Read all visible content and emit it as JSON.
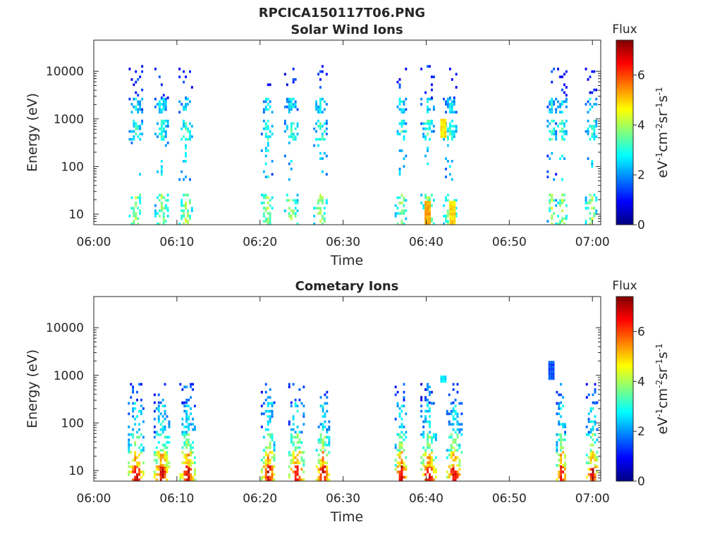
{
  "page_title": "RPCICA150117T06.PNG",
  "chart_data": [
    {
      "type": "heatmap",
      "title": "Solar Wind Ions",
      "xlabel": "Time",
      "ylabel": "Energy (eV)",
      "x_ticks": [
        "06:00",
        "06:10",
        "06:20",
        "06:30",
        "06:40",
        "06:50",
        "07:00"
      ],
      "xlim": [
        "06:00",
        "07:01"
      ],
      "y_scale": "log",
      "y_ticks": [
        "10",
        "100",
        "1000",
        "10000"
      ],
      "ylim": [
        6,
        45000
      ],
      "colorbar": {
        "title": "Flux",
        "label": "eV-1cm-2sr-1s-1",
        "ticks": [
          "0",
          "2",
          "4",
          "6"
        ],
        "range": [
          0,
          7.4
        ],
        "colormap": "jet"
      },
      "bursts": [
        {
          "t": 5.0,
          "spread": 1.6
        },
        {
          "t": 8.1,
          "spread": 1.6
        },
        {
          "t": 11.0,
          "spread": 1.6
        },
        {
          "t": 20.8,
          "spread": 1.4
        },
        {
          "t": 23.7,
          "spread": 1.6
        },
        {
          "t": 27.2,
          "spread": 1.6
        },
        {
          "t": 36.9,
          "spread": 1.4
        },
        {
          "t": 40.1,
          "spread": 1.6
        },
        {
          "t": 42.8,
          "spread": 1.6
        },
        {
          "t": 55.0,
          "spread": 1.0
        },
        {
          "t": 56.2,
          "spread": 1.4
        },
        {
          "t": 59.8,
          "spread": 1.4
        }
      ],
      "bands": [
        {
          "e_lo": 4,
          "e_hi": 25,
          "v": 3.4,
          "density": 0.45
        },
        {
          "e_lo": 350,
          "e_hi": 850,
          "v": 2.7,
          "density": 0.55
        },
        {
          "e_lo": 1300,
          "e_hi": 2600,
          "v": 2.3,
          "density": 0.5
        },
        {
          "e_lo": 50,
          "e_hi": 320,
          "v": 2.2,
          "density": 0.08
        },
        {
          "e_lo": 2600,
          "e_hi": 12000,
          "v": 1.1,
          "density": 0.09
        }
      ],
      "highlights": [
        {
          "t": 40.1,
          "e_lo": 6,
          "e_hi": 18,
          "v": 5.3
        },
        {
          "t": 43.1,
          "e_lo": 6,
          "e_hi": 18,
          "v": 4.9
        },
        {
          "t": 42.0,
          "e_lo": 400,
          "e_hi": 900,
          "v": 4.8
        }
      ]
    },
    {
      "type": "heatmap",
      "title": "Cometary Ions",
      "xlabel": "Time",
      "ylabel": "Energy (eV)",
      "x_ticks": [
        "06:00",
        "06:10",
        "06:20",
        "06:30",
        "06:40",
        "06:50",
        "07:00"
      ],
      "xlim": [
        "06:00",
        "07:01"
      ],
      "y_scale": "log",
      "y_ticks": [
        "10",
        "100",
        "1000",
        "10000"
      ],
      "ylim": [
        6,
        45000
      ],
      "colorbar": {
        "title": "Flux",
        "label": "eV-1cm-2sr-1s-1",
        "ticks": [
          "0",
          "2",
          "4",
          "6"
        ],
        "range": [
          0,
          7.4
        ],
        "colormap": "jet"
      },
      "bursts": [
        {
          "t": 5.0,
          "spread": 1.8
        },
        {
          "t": 8.1,
          "spread": 1.8
        },
        {
          "t": 11.2,
          "spread": 1.8
        },
        {
          "t": 20.9,
          "spread": 1.6
        },
        {
          "t": 24.3,
          "spread": 1.8
        },
        {
          "t": 27.5,
          "spread": 1.6
        },
        {
          "t": 36.9,
          "spread": 1.4
        },
        {
          "t": 40.2,
          "spread": 1.8
        },
        {
          "t": 43.3,
          "spread": 1.8
        },
        {
          "t": 56.2,
          "spread": 1.2
        },
        {
          "t": 59.9,
          "spread": 1.4
        }
      ],
      "bands": [
        {
          "e_lo": 6,
          "e_hi": 12,
          "v": 5.8,
          "density": 0.7
        },
        {
          "e_lo": 12,
          "e_hi": 25,
          "v": 4.6,
          "density": 0.6
        },
        {
          "e_lo": 25,
          "e_hi": 60,
          "v": 3.3,
          "density": 0.45
        },
        {
          "e_lo": 60,
          "e_hi": 250,
          "v": 2.3,
          "density": 0.35
        },
        {
          "e_lo": 250,
          "e_hi": 650,
          "v": 1.5,
          "density": 0.2
        }
      ],
      "highlights": [
        {
          "t": 42.0,
          "e_lo": 700,
          "e_hi": 950,
          "v": 2.6
        },
        {
          "t": 55.0,
          "e_lo": 800,
          "e_hi": 2000,
          "v": 1.5
        }
      ]
    }
  ]
}
